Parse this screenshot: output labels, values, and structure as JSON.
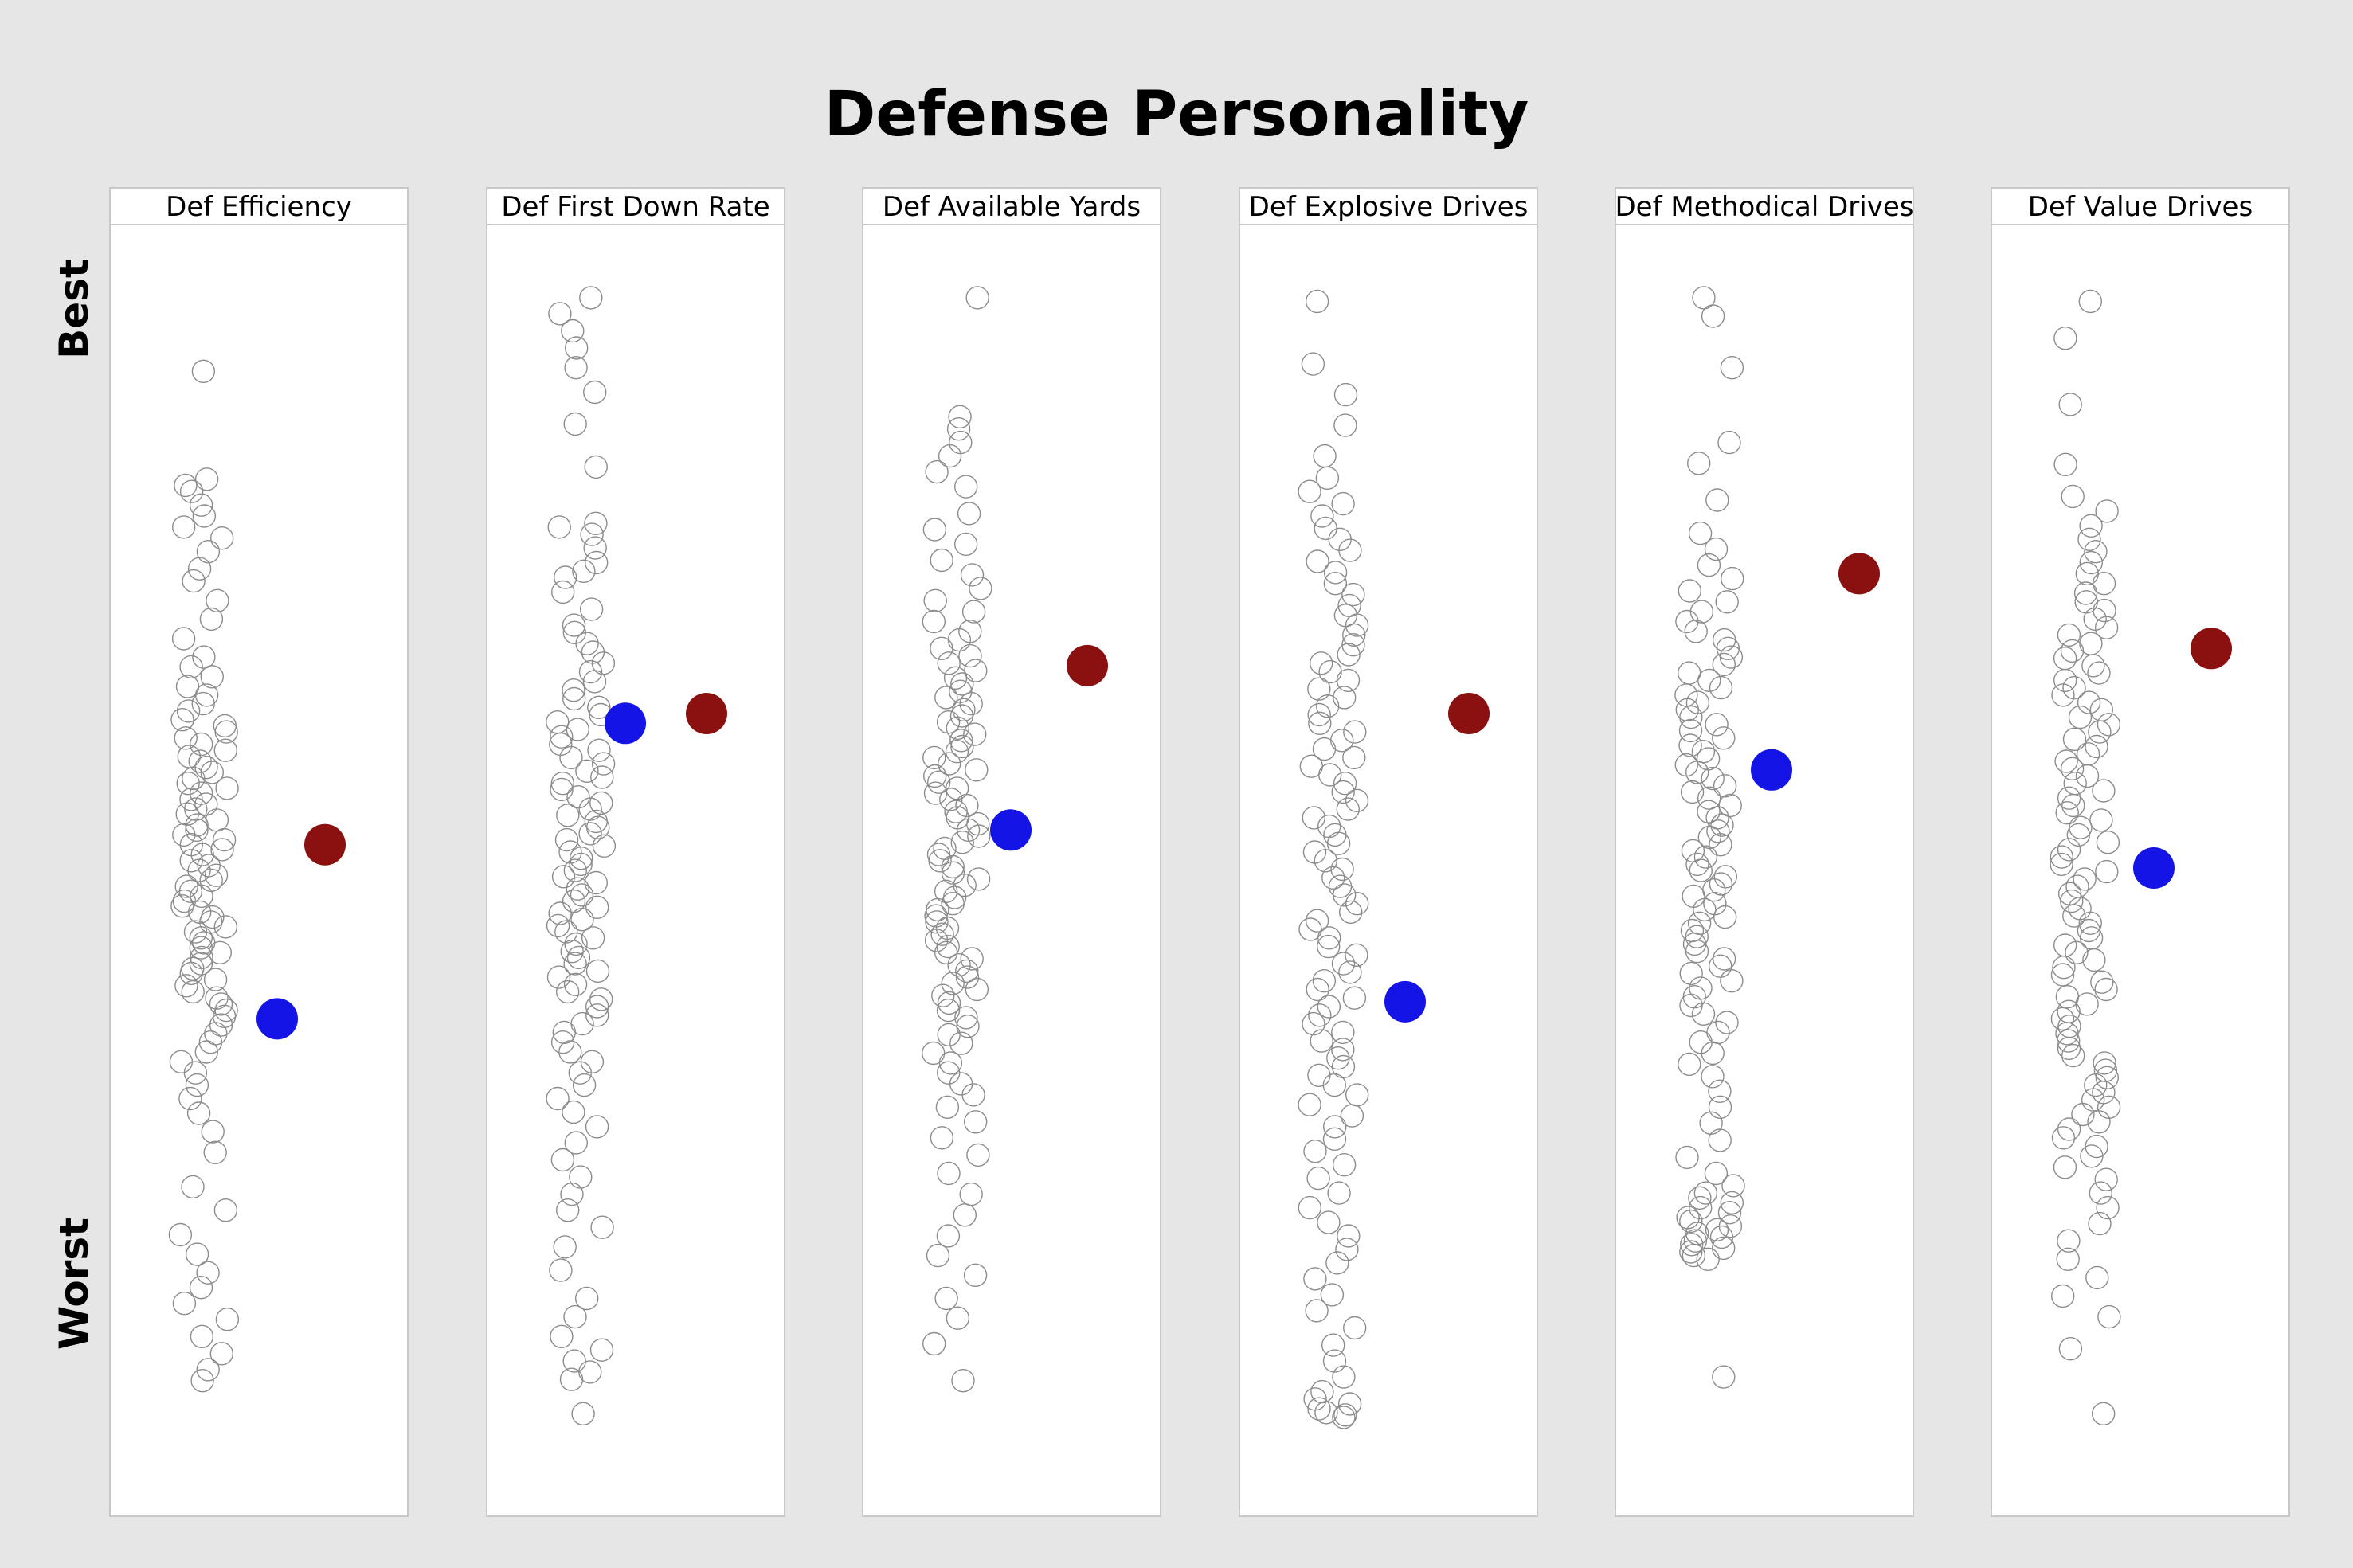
{
  "chart_data": {
    "type": "scatter",
    "title": "Defense Personality",
    "scale_labels": {
      "top": "Best",
      "bottom": "Worst"
    },
    "colors": {
      "background": "#e6e6e6",
      "panel_fill": "#ffffff",
      "panel_border": "#c8c8c8",
      "league_point_stroke": "#8c8c8c",
      "highlight_red": "#8b1010",
      "highlight_blue": "#1414e6"
    },
    "panels": [
      {
        "label": "Def Efficiency",
        "red": 0.519,
        "blue": 0.377,
        "league": [
          0.905,
          0.817,
          0.812,
          0.807,
          0.796,
          0.787,
          0.778,
          0.769,
          0.758,
          0.744,
          0.734,
          0.718,
          0.703,
          0.687,
          0.672,
          0.664,
          0.656,
          0.648,
          0.641,
          0.634,
          0.628,
          0.621,
          0.616,
          0.611,
          0.606,
          0.601,
          0.596,
          0.591,
          0.587,
          0.582,
          0.578,
          0.573,
          0.569,
          0.565,
          0.561,
          0.556,
          0.552,
          0.548,
          0.544,
          0.539,
          0.535,
          0.531,
          0.527,
          0.523,
          0.519,
          0.515,
          0.511,
          0.506,
          0.502,
          0.498,
          0.494,
          0.49,
          0.485,
          0.481,
          0.477,
          0.473,
          0.469,
          0.464,
          0.46,
          0.456,
          0.452,
          0.448,
          0.443,
          0.439,
          0.435,
          0.431,
          0.427,
          0.422,
          0.418,
          0.414,
          0.409,
          0.404,
          0.399,
          0.394,
          0.389,
          0.384,
          0.379,
          0.372,
          0.365,
          0.358,
          0.35,
          0.342,
          0.333,
          0.323,
          0.312,
          0.3,
          0.285,
          0.268,
          0.24,
          0.221,
          0.201,
          0.185,
          0.17,
          0.158,
          0.145,
          0.132,
          0.118,
          0.104,
          0.091,
          0.082
        ]
      },
      {
        "label": "Def First Down Rate",
        "red": 0.626,
        "blue": 0.618,
        "league": [
          0.965,
          0.952,
          0.938,
          0.924,
          0.908,
          0.888,
          0.862,
          0.827,
          0.781,
          0.778,
          0.772,
          0.761,
          0.749,
          0.742,
          0.737,
          0.725,
          0.711,
          0.698,
          0.692,
          0.683,
          0.676,
          0.667,
          0.66,
          0.652,
          0.645,
          0.638,
          0.631,
          0.625,
          0.619,
          0.613,
          0.607,
          0.601,
          0.596,
          0.59,
          0.585,
          0.579,
          0.574,
          0.569,
          0.564,
          0.558,
          0.553,
          0.548,
          0.543,
          0.538,
          0.533,
          0.528,
          0.523,
          0.518,
          0.513,
          0.508,
          0.503,
          0.498,
          0.493,
          0.488,
          0.483,
          0.478,
          0.473,
          0.468,
          0.463,
          0.458,
          0.453,
          0.448,
          0.443,
          0.438,
          0.432,
          0.427,
          0.422,
          0.416,
          0.411,
          0.405,
          0.399,
          0.393,
          0.387,
          0.38,
          0.373,
          0.366,
          0.358,
          0.35,
          0.342,
          0.333,
          0.323,
          0.312,
          0.301,
          0.289,
          0.276,
          0.262,
          0.248,
          0.234,
          0.221,
          0.207,
          0.191,
          0.172,
          0.149,
          0.134,
          0.118,
          0.107,
          0.098,
          0.089,
          0.083,
          0.055
        ]
      },
      {
        "label": "Def Available Yards",
        "red": 0.665,
        "blue": 0.531,
        "league": [
          0.965,
          0.868,
          0.858,
          0.847,
          0.836,
          0.823,
          0.811,
          0.789,
          0.776,
          0.764,
          0.751,
          0.739,
          0.728,
          0.718,
          0.709,
          0.701,
          0.693,
          0.686,
          0.679,
          0.673,
          0.667,
          0.661,
          0.655,
          0.65,
          0.644,
          0.639,
          0.634,
          0.629,
          0.624,
          0.619,
          0.614,
          0.609,
          0.604,
          0.599,
          0.595,
          0.59,
          0.585,
          0.58,
          0.575,
          0.57,
          0.565,
          0.561,
          0.556,
          0.551,
          0.546,
          0.541,
          0.536,
          0.531,
          0.526,
          0.521,
          0.516,
          0.511,
          0.506,
          0.501,
          0.496,
          0.491,
          0.486,
          0.481,
          0.476,
          0.471,
          0.466,
          0.461,
          0.456,
          0.451,
          0.446,
          0.441,
          0.436,
          0.431,
          0.426,
          0.421,
          0.416,
          0.411,
          0.406,
          0.401,
          0.396,
          0.39,
          0.384,
          0.378,
          0.371,
          0.364,
          0.357,
          0.349,
          0.341,
          0.333,
          0.324,
          0.315,
          0.305,
          0.293,
          0.28,
          0.266,
          0.251,
          0.234,
          0.217,
          0.2,
          0.184,
          0.168,
          0.149,
          0.133,
          0.112,
          0.082
        ]
      },
      {
        "label": "Def Explosive Drives",
        "red": 0.626,
        "blue": 0.391,
        "league": [
          0.962,
          0.911,
          0.886,
          0.861,
          0.836,
          0.818,
          0.807,
          0.797,
          0.787,
          0.777,
          0.768,
          0.759,
          0.75,
          0.741,
          0.732,
          0.723,
          0.714,
          0.706,
          0.698,
          0.69,
          0.682,
          0.674,
          0.667,
          0.66,
          0.653,
          0.646,
          0.639,
          0.632,
          0.625,
          0.618,
          0.611,
          0.604,
          0.597,
          0.59,
          0.583,
          0.576,
          0.569,
          0.562,
          0.555,
          0.548,
          0.541,
          0.534,
          0.527,
          0.52,
          0.513,
          0.506,
          0.499,
          0.492,
          0.485,
          0.478,
          0.471,
          0.464,
          0.457,
          0.45,
          0.443,
          0.436,
          0.429,
          0.422,
          0.415,
          0.408,
          0.401,
          0.394,
          0.387,
          0.38,
          0.373,
          0.366,
          0.359,
          0.352,
          0.345,
          0.338,
          0.331,
          0.323,
          0.315,
          0.307,
          0.298,
          0.289,
          0.279,
          0.269,
          0.258,
          0.247,
          0.235,
          0.223,
          0.211,
          0.2,
          0.189,
          0.178,
          0.165,
          0.152,
          0.139,
          0.125,
          0.111,
          0.098,
          0.085,
          0.073,
          0.067,
          0.063,
          0.059,
          0.056,
          0.054,
          0.052
        ]
      },
      {
        "label": "Def Methodical Drives",
        "red": 0.74,
        "blue": 0.58,
        "league": [
          0.965,
          0.95,
          0.908,
          0.847,
          0.83,
          0.8,
          0.773,
          0.76,
          0.747,
          0.736,
          0.726,
          0.717,
          0.709,
          0.701,
          0.693,
          0.686,
          0.679,
          0.672,
          0.666,
          0.659,
          0.653,
          0.647,
          0.641,
          0.635,
          0.629,
          0.623,
          0.617,
          0.612,
          0.606,
          0.6,
          0.595,
          0.589,
          0.584,
          0.578,
          0.573,
          0.567,
          0.562,
          0.557,
          0.551,
          0.546,
          0.541,
          0.535,
          0.53,
          0.525,
          0.519,
          0.514,
          0.509,
          0.503,
          0.498,
          0.493,
          0.487,
          0.482,
          0.477,
          0.471,
          0.466,
          0.46,
          0.455,
          0.449,
          0.444,
          0.438,
          0.432,
          0.426,
          0.42,
          0.414,
          0.408,
          0.402,
          0.395,
          0.388,
          0.381,
          0.374,
          0.366,
          0.358,
          0.349,
          0.34,
          0.33,
          0.318,
          0.305,
          0.292,
          0.278,
          0.264,
          0.251,
          0.241,
          0.235,
          0.231,
          0.227,
          0.223,
          0.219,
          0.215,
          0.212,
          0.208,
          0.205,
          0.202,
          0.199,
          0.196,
          0.193,
          0.19,
          0.187,
          0.184,
          0.181,
          0.085
        ]
      },
      {
        "label": "Def Value Drives",
        "red": 0.679,
        "blue": 0.5,
        "league": [
          0.962,
          0.932,
          0.878,
          0.829,
          0.803,
          0.791,
          0.779,
          0.768,
          0.758,
          0.749,
          0.74,
          0.732,
          0.724,
          0.717,
          0.71,
          0.703,
          0.696,
          0.69,
          0.683,
          0.677,
          0.671,
          0.665,
          0.659,
          0.653,
          0.647,
          0.641,
          0.635,
          0.629,
          0.623,
          0.617,
          0.611,
          0.605,
          0.599,
          0.593,
          0.587,
          0.581,
          0.575,
          0.569,
          0.563,
          0.557,
          0.551,
          0.545,
          0.539,
          0.533,
          0.527,
          0.521,
          0.515,
          0.509,
          0.503,
          0.497,
          0.491,
          0.485,
          0.479,
          0.473,
          0.467,
          0.461,
          0.455,
          0.449,
          0.443,
          0.437,
          0.431,
          0.425,
          0.419,
          0.413,
          0.407,
          0.401,
          0.395,
          0.389,
          0.383,
          0.377,
          0.371,
          0.365,
          0.359,
          0.353,
          0.347,
          0.341,
          0.335,
          0.329,
          0.323,
          0.317,
          0.311,
          0.305,
          0.299,
          0.293,
          0.287,
          0.28,
          0.273,
          0.265,
          0.256,
          0.246,
          0.235,
          0.223,
          0.21,
          0.196,
          0.181,
          0.166,
          0.151,
          0.134,
          0.108,
          0.055
        ]
      }
    ]
  }
}
